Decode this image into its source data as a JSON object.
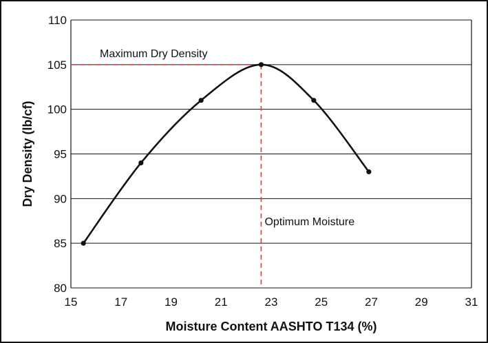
{
  "chart_data": {
    "type": "line",
    "title": "",
    "xlabel": "Moisture Content AASHTO T134 (%)",
    "ylabel": "Dry Density (lb/cf)",
    "xlim": [
      15,
      31
    ],
    "ylim": [
      80,
      110
    ],
    "x_ticks": [
      15,
      17,
      19,
      21,
      23,
      25,
      27,
      29,
      31
    ],
    "y_ticks": [
      80,
      85,
      90,
      95,
      100,
      105,
      110
    ],
    "grid": "horizontal",
    "series": [
      {
        "x": [
          15.5,
          17.8,
          20.2,
          22.6,
          24.7,
          26.9
        ],
        "y": [
          85,
          94,
          101,
          105,
          101,
          93
        ]
      }
    ],
    "annotations": {
      "max_dry_density": {
        "label": "Maximum Dry Density",
        "value": 105
      },
      "optimum_moisture": {
        "label": "Optimum Moisture",
        "value": 22.6
      }
    },
    "colors": {
      "curve": "#111111",
      "reference": "#e8353c",
      "grid": "#111111"
    }
  }
}
